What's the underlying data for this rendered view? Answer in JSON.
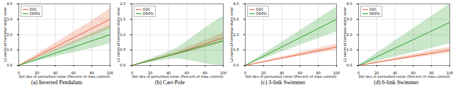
{
  "chart_data": [
    {
      "type": "line",
      "title": "(a) Inverted Pendulum",
      "xlabel": "Std dev of perturbed noise (Percent of max control)",
      "ylabel": "L2-norm of terminal state error",
      "x": [
        0,
        10,
        20,
        30,
        40,
        50,
        60,
        70,
        80,
        90,
        100
      ],
      "xlim": [
        0,
        100
      ],
      "xticks": [
        0,
        20,
        40,
        60,
        80,
        100
      ],
      "ylim": [
        0,
        4
      ],
      "yticks": [
        0,
        1,
        2,
        3,
        4
      ],
      "grid": true,
      "legend": "top-left",
      "series": [
        {
          "name": "D2C",
          "color": "#e8623a",
          "values": [
            0,
            0.3,
            0.6,
            0.9,
            1.2,
            1.5,
            1.8,
            2.1,
            2.4,
            2.7,
            3.0
          ],
          "lower": [
            0,
            0.22,
            0.46,
            0.7,
            0.94,
            1.18,
            1.42,
            1.66,
            1.9,
            2.15,
            2.4
          ],
          "upper": [
            0,
            0.38,
            0.74,
            1.1,
            1.46,
            1.82,
            2.18,
            2.54,
            2.9,
            3.3,
            3.7
          ]
        },
        {
          "name": "DDPG",
          "color": "#2ca02c",
          "values": [
            0,
            0.2,
            0.4,
            0.6,
            0.8,
            1.0,
            1.2,
            1.4,
            1.6,
            1.8,
            2.0
          ],
          "lower": [
            0,
            0.14,
            0.28,
            0.42,
            0.56,
            0.7,
            0.84,
            0.98,
            1.12,
            1.26,
            1.4
          ],
          "upper": [
            0,
            0.26,
            0.52,
            0.78,
            1.04,
            1.3,
            1.56,
            1.82,
            2.08,
            2.34,
            2.6
          ]
        }
      ]
    },
    {
      "type": "line",
      "title": "(b) Cart-Pole",
      "xlabel": "Std dev of perturbed noise (Percent of max control)",
      "ylabel": "L2-norm of terminal state error",
      "x": [
        0,
        10,
        20,
        30,
        40,
        50,
        60,
        70,
        80,
        90,
        100
      ],
      "xlim": [
        0,
        100
      ],
      "xticks": [
        0,
        20,
        40,
        60,
        80,
        100
      ],
      "ylim": [
        0,
        2
      ],
      "yticks": [
        0,
        0.5,
        1,
        1.5,
        2
      ],
      "grid": true,
      "legend": "top-left",
      "series": [
        {
          "name": "D2C",
          "color": "#e8623a",
          "values": [
            0,
            0.08,
            0.16,
            0.24,
            0.32,
            0.4,
            0.5,
            0.6,
            0.7,
            0.8,
            0.9
          ],
          "lower": [
            0,
            0.06,
            0.13,
            0.2,
            0.27,
            0.34,
            0.42,
            0.5,
            0.58,
            0.66,
            0.74
          ],
          "upper": [
            0,
            0.1,
            0.19,
            0.28,
            0.37,
            0.46,
            0.58,
            0.7,
            0.82,
            0.94,
            1.06
          ]
        },
        {
          "name": "DDPG",
          "color": "#2ca02c",
          "values": [
            0,
            0.08,
            0.16,
            0.24,
            0.32,
            0.4,
            0.48,
            0.56,
            0.64,
            0.72,
            0.8
          ],
          "lower": [
            0,
            0.05,
            0.1,
            0.15,
            0.2,
            0.22,
            0.18,
            0.12,
            0.06,
            0.02,
            0
          ],
          "upper": [
            0,
            0.11,
            0.22,
            0.33,
            0.44,
            0.58,
            0.78,
            1.0,
            1.22,
            1.42,
            1.6
          ]
        }
      ]
    },
    {
      "type": "line",
      "title": "(c) 3-link Swimmer",
      "xlabel": "Std dev of perturbed noise (Percent of max control)",
      "ylabel": "L2-norm of terminal state error",
      "x": [
        0,
        10,
        20,
        30,
        40,
        50,
        60,
        70,
        80,
        90,
        100
      ],
      "xlim": [
        0,
        100
      ],
      "xticks": [
        0,
        20,
        40,
        60,
        80,
        100
      ],
      "ylim": [
        0,
        4
      ],
      "yticks": [
        0,
        1,
        2,
        3,
        4
      ],
      "grid": true,
      "legend": "top-left",
      "series": [
        {
          "name": "D2C",
          "color": "#e8623a",
          "values": [
            0,
            0.12,
            0.24,
            0.36,
            0.48,
            0.6,
            0.72,
            0.84,
            0.96,
            1.08,
            1.2
          ],
          "lower": [
            0,
            0.1,
            0.2,
            0.3,
            0.4,
            0.5,
            0.6,
            0.7,
            0.8,
            0.9,
            1.0
          ],
          "upper": [
            0,
            0.14,
            0.28,
            0.42,
            0.56,
            0.7,
            0.84,
            0.98,
            1.12,
            1.26,
            1.4
          ]
        },
        {
          "name": "DDPG",
          "color": "#2ca02c",
          "values": [
            0,
            0.3,
            0.6,
            0.9,
            1.2,
            1.5,
            1.8,
            2.1,
            2.4,
            2.7,
            3.0
          ],
          "lower": [
            0,
            0.22,
            0.44,
            0.66,
            0.88,
            1.1,
            1.32,
            1.54,
            1.76,
            1.98,
            2.2
          ],
          "upper": [
            0,
            0.38,
            0.76,
            1.14,
            1.52,
            1.9,
            2.28,
            2.66,
            3.04,
            3.42,
            3.8
          ]
        }
      ]
    },
    {
      "type": "line",
      "title": "(d) 6-link Swimmer",
      "xlabel": "Std dev of perturbed noise (Percent of max control)",
      "ylabel": "L2-norm of terminal state error",
      "x": [
        0,
        10,
        20,
        30,
        40,
        50,
        60,
        70,
        80,
        90,
        100
      ],
      "xlim": [
        0,
        100
      ],
      "xticks": [
        0,
        20,
        40,
        60,
        80,
        100
      ],
      "ylim": [
        0,
        4
      ],
      "yticks": [
        0,
        1,
        2,
        3,
        4
      ],
      "grid": true,
      "legend": "top-left",
      "series": [
        {
          "name": "D2C",
          "color": "#e8623a",
          "values": [
            0,
            0.1,
            0.2,
            0.3,
            0.4,
            0.5,
            0.6,
            0.7,
            0.8,
            0.9,
            1.0
          ],
          "lower": [
            0,
            0.08,
            0.16,
            0.24,
            0.32,
            0.4,
            0.48,
            0.56,
            0.64,
            0.72,
            0.8
          ],
          "upper": [
            0,
            0.12,
            0.24,
            0.36,
            0.48,
            0.6,
            0.72,
            0.84,
            0.96,
            1.08,
            1.2
          ]
        },
        {
          "name": "DDPG",
          "color": "#2ca02c",
          "values": [
            0,
            0.28,
            0.56,
            0.84,
            1.12,
            1.4,
            1.68,
            1.96,
            2.24,
            2.52,
            2.8
          ],
          "lower": [
            0,
            0.14,
            0.28,
            0.42,
            0.56,
            0.7,
            0.84,
            0.98,
            1.12,
            1.26,
            1.4
          ],
          "upper": [
            0,
            0.4,
            0.8,
            1.2,
            1.6,
            2.0,
            2.4,
            2.8,
            3.2,
            3.6,
            4.0
          ]
        }
      ]
    }
  ]
}
